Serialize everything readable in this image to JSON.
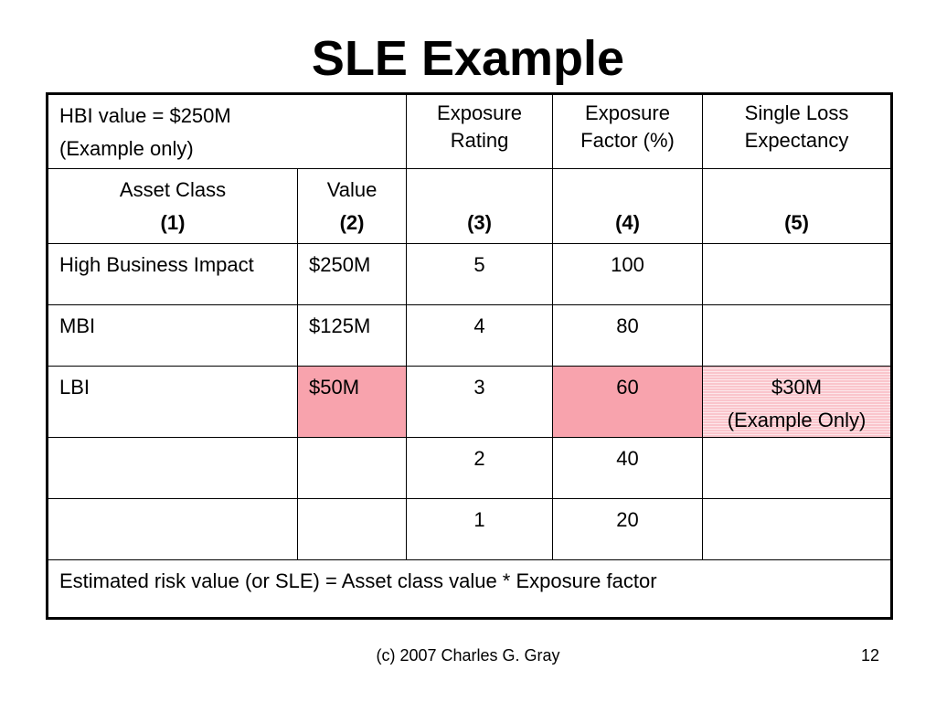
{
  "slide": {
    "title": "SLE Example",
    "footer_text": "(c) 2007 Charles G. Gray",
    "page_number": "12"
  },
  "colors": {
    "highlight": "#f8a3ad"
  },
  "table": {
    "intro": {
      "line1": "HBI value = $250M",
      "line2": "(Example only)"
    },
    "headers": {
      "exposure_rating": [
        "Exposure",
        "Rating"
      ],
      "exposure_factor": [
        "Exposure",
        "Factor (%)"
      ],
      "sle": [
        "Single Loss",
        "Expectancy"
      ]
    },
    "subheaders": {
      "asset_class": "Asset Class",
      "value": "Value",
      "col1": "(1)",
      "col2": "(2)",
      "col3": "(3)",
      "col4": "(4)",
      "col5": "(5)"
    },
    "rows": [
      {
        "asset_class": "High Business Impact",
        "value": "$250M",
        "rating": "5",
        "factor": "100",
        "sle": ""
      },
      {
        "asset_class": "MBI",
        "value": "$125M",
        "rating": "4",
        "factor": "80",
        "sle": ""
      },
      {
        "asset_class": "LBI",
        "value": "$50M",
        "rating": "3",
        "factor": "60",
        "sle": "$30M",
        "sle_note": "(Example Only)"
      },
      {
        "asset_class": "",
        "value": "",
        "rating": "2",
        "factor": "40",
        "sle": ""
      },
      {
        "asset_class": "",
        "value": "",
        "rating": "1",
        "factor": "20",
        "sle": ""
      }
    ],
    "formula": "Estimated risk value (or SLE) = Asset class value * Exposure factor"
  }
}
